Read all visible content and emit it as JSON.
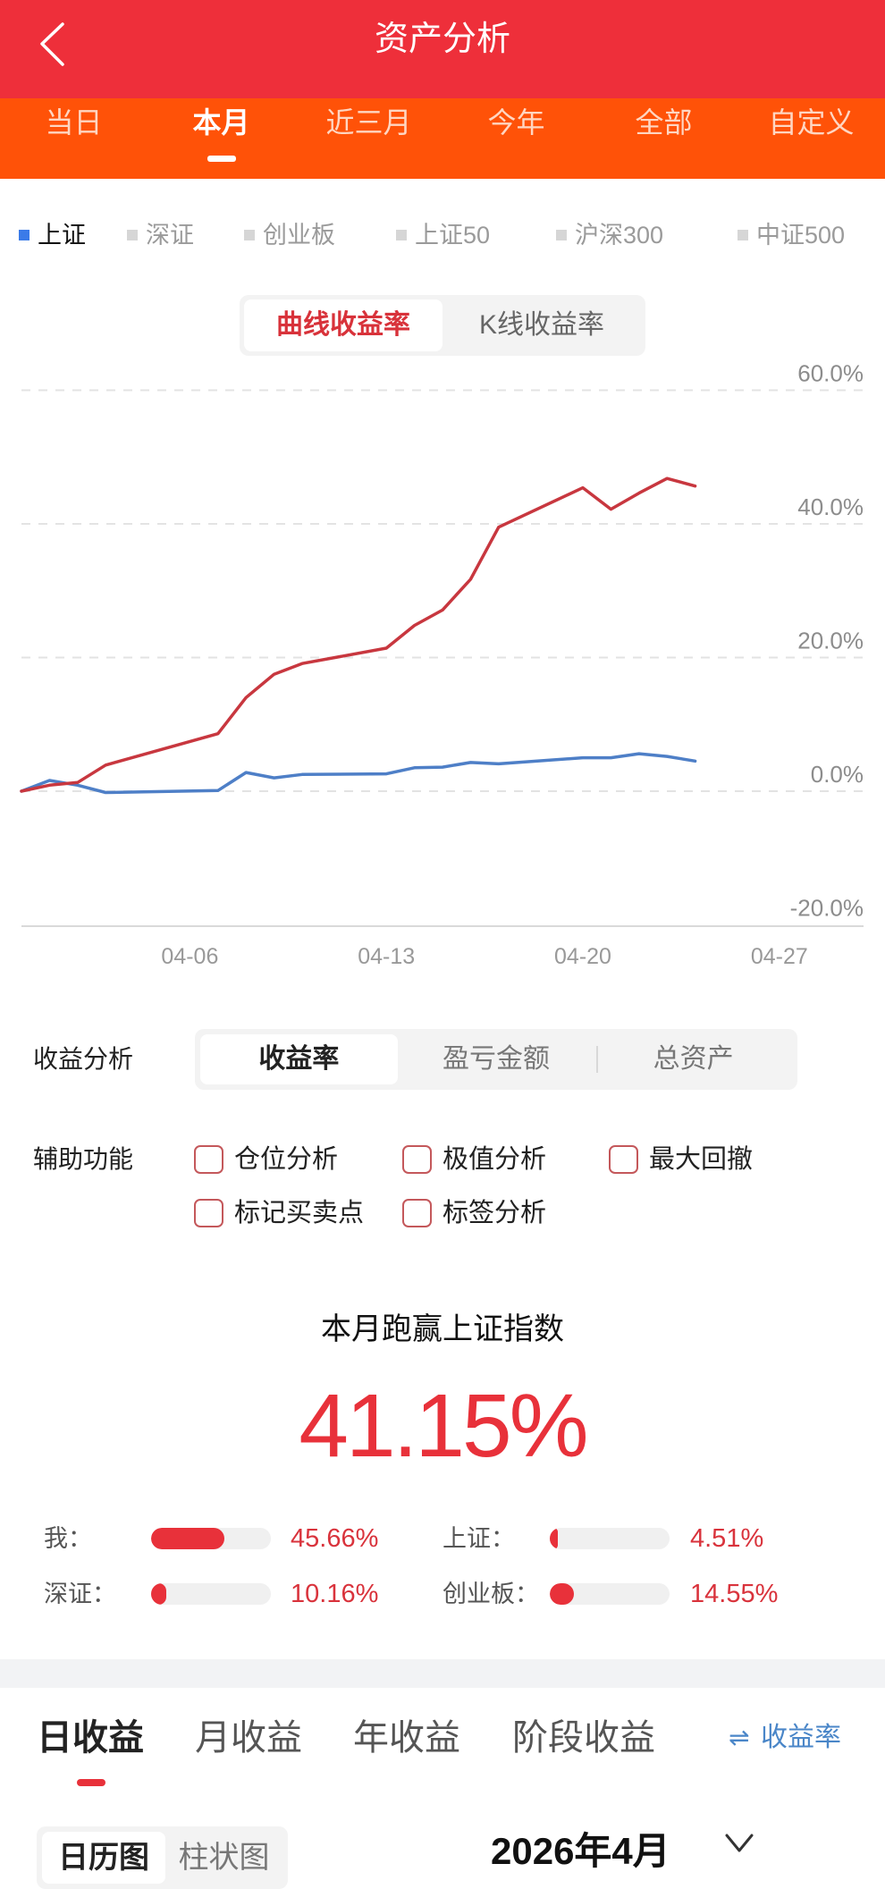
{
  "header": {
    "title": "资产分析",
    "back_icon": "chevron-left-icon"
  },
  "period_tabs": {
    "active_index": 1,
    "items": [
      "当日",
      "本月",
      "近三月",
      "今年",
      "全部",
      "自定义"
    ]
  },
  "index_legend": {
    "selected_index": 0,
    "items": [
      {
        "label": "上证",
        "color": "#3B7BE8"
      },
      {
        "label": "深证",
        "color": "#D6D6D6"
      },
      {
        "label": "创业板",
        "color": "#D6D6D6"
      },
      {
        "label": "上证50",
        "color": "#D6D6D6"
      },
      {
        "label": "沪深300",
        "color": "#D6D6D6"
      },
      {
        "label": "中证500",
        "color": "#D6D6D6"
      }
    ]
  },
  "chart_mode": {
    "active_index": 0,
    "options": [
      "曲线收益率",
      "K线收益率"
    ]
  },
  "chart_data": {
    "type": "line",
    "title": "",
    "xlabel": "",
    "ylabel": "",
    "x": [
      "03-31",
      "04-01",
      "04-02",
      "04-03",
      "04-07",
      "04-08",
      "04-09",
      "04-10",
      "04-13",
      "04-14",
      "04-15",
      "04-16",
      "04-17",
      "04-20",
      "04-21",
      "04-22",
      "04-23",
      "04-24"
    ],
    "x_range": [
      "03-31",
      "04-30"
    ],
    "x_ticks": [
      "04-06",
      "04-13",
      "04-20",
      "04-27"
    ],
    "y_tick_values": [
      60,
      40,
      20,
      0,
      -20
    ],
    "y_ticks": [
      "60.0%",
      "40.0%",
      "20.0%",
      "0.0%",
      "-20.0%"
    ],
    "ylim": [
      -20,
      60
    ],
    "grid": true,
    "legend": [
      "上证",
      "深证",
      "创业板",
      "上证50",
      "沪深300",
      "中证500"
    ],
    "legend_position": "top",
    "series": [
      {
        "name": "我",
        "color": "#C8373F",
        "values": [
          0,
          0.9,
          1.3,
          3.9,
          8.6,
          14.0,
          17.5,
          19.1,
          21.4,
          24.8,
          27.1,
          31.7,
          39.5,
          45.4,
          42.2,
          44.6,
          46.8,
          45.66
        ]
      },
      {
        "name": "上证",
        "color": "#4E7FC7",
        "values": [
          0,
          1.6,
          0.9,
          -0.2,
          0.1,
          2.8,
          2.0,
          2.5,
          2.6,
          3.5,
          3.6,
          4.3,
          4.1,
          5.0,
          5.0,
          5.6,
          5.2,
          4.51
        ]
      }
    ]
  },
  "analysis": {
    "label": "收益分析",
    "active_index": 0,
    "options": [
      "收益率",
      "盈亏金额",
      "总资产"
    ]
  },
  "aux": {
    "label": "辅助功能",
    "options": [
      {
        "label": "仓位分析",
        "checked": false
      },
      {
        "label": "极值分析",
        "checked": false
      },
      {
        "label": "最大回撤",
        "checked": false
      },
      {
        "label": "标记买卖点",
        "checked": false
      },
      {
        "label": "标签分析",
        "checked": false
      }
    ]
  },
  "summary": {
    "title": "本月跑赢上证指数",
    "value": "41.15%",
    "compare": [
      {
        "label": "我：",
        "value": "45.66%",
        "fill_pct": 61
      },
      {
        "label": "上证：",
        "value": "4.51%",
        "fill_pct": 7
      },
      {
        "label": "深证：",
        "value": "10.16%",
        "fill_pct": 13
      },
      {
        "label": "创业板：",
        "value": "14.55%",
        "fill_pct": 20
      }
    ]
  },
  "earnings_tabs": {
    "active_index": 0,
    "items": [
      "日收益",
      "月收益",
      "年收益",
      "阶段收益"
    ],
    "toggle": {
      "icon": "⇌",
      "label": "收益率"
    }
  },
  "view_toggle": {
    "active_index": 0,
    "options": [
      "日历图",
      "柱状图"
    ]
  },
  "month_picker": {
    "label": "2026年4月"
  },
  "colors": {
    "header_red": "#EE2F3A",
    "tab_orange": "#FF5208",
    "accent_red": "#E8313A",
    "series_me": "#C8373F",
    "series_sh": "#4E7FC7",
    "link_blue": "#4A86C8"
  }
}
